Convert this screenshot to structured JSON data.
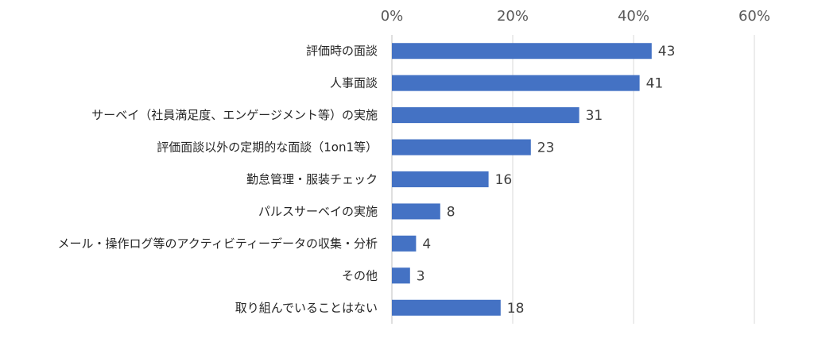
{
  "chart_data": {
    "type": "bar",
    "orientation": "horizontal",
    "categories": [
      "評価時の面談",
      "人事面談",
      "サーベイ（社員満足度、エンゲージメント等）の実施",
      "評価面談以外の定期的な面談（1on1等）",
      "勤怠管理・服装チェック",
      "パルスサーベイの実施",
      "メール・操作ログ等のアクティビティーデータの収集・分析",
      "その他",
      "取り組んでいることはない"
    ],
    "values": [
      43,
      41,
      31,
      23,
      16,
      8,
      4,
      3,
      18
    ],
    "data_labels": [
      "43",
      "41",
      "31",
      "23",
      "16",
      "8",
      "4",
      "3",
      "18"
    ],
    "x_ticks": [
      "0%",
      "20%",
      "40%",
      "60%"
    ],
    "x_tick_values": [
      0,
      20,
      40,
      60
    ],
    "xlim": [
      0,
      60
    ],
    "x_axis_position": "top",
    "grid": true,
    "bar_color": "#4472C4",
    "title": "",
    "xlabel": "",
    "ylabel": ""
  }
}
